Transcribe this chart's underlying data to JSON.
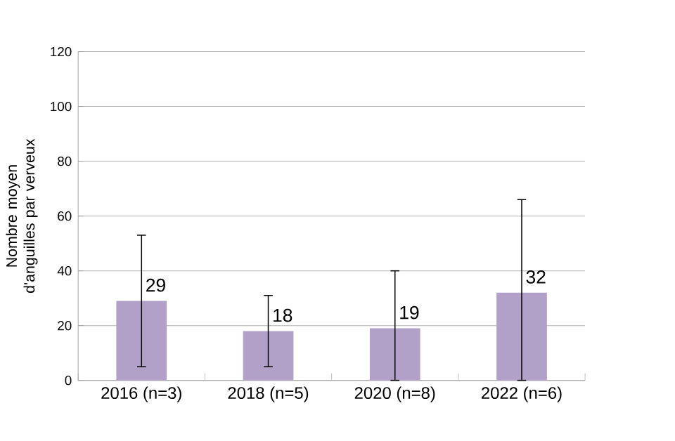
{
  "chart_data": {
    "type": "bar",
    "ylabel": "Nombre moyen d'anguilles par verveux",
    "categories": [
      "2016 (n=3)",
      "2018 (n=5)",
      "2020 (n=8)",
      "2022 (n=6)"
    ],
    "values": [
      29,
      18,
      19,
      32
    ],
    "errors": [
      [
        5,
        53
      ],
      [
        5,
        31
      ],
      [
        0,
        40
      ],
      [
        0,
        66
      ]
    ],
    "color": "#b1a0c7",
    "ylim": [
      0,
      120
    ],
    "yticks": [
      0,
      20,
      40,
      60,
      80,
      100,
      120
    ],
    "grid": "y",
    "data_labels": true
  }
}
